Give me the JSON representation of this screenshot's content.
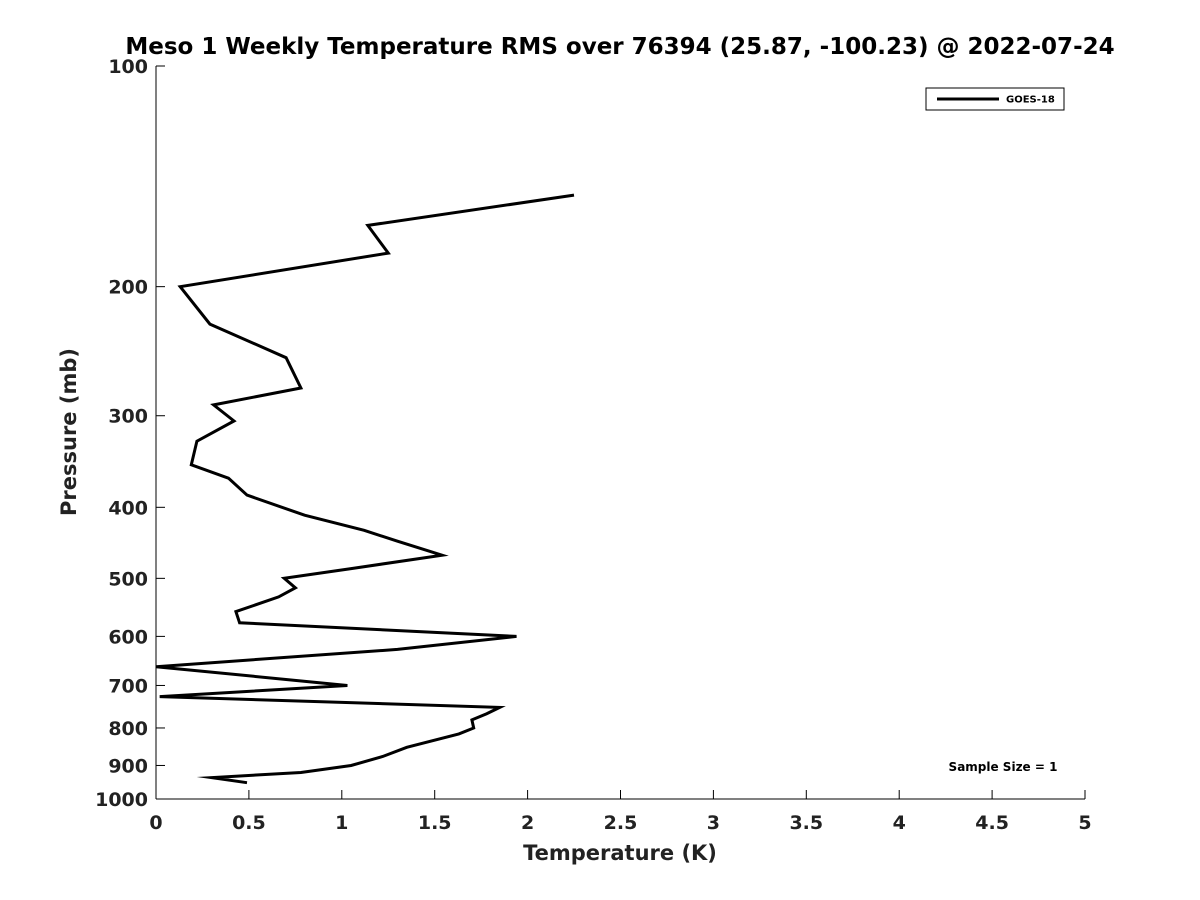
{
  "chart_data": {
    "type": "line",
    "title": "Meso 1 Weekly Temperature RMS over 76394 (25.87, -100.23) @ 2022-07-24",
    "xlabel": "Temperature (K)",
    "ylabel": "Pressure (mb)",
    "xlim": [
      0,
      5
    ],
    "ylim": [
      100,
      1000
    ],
    "y_scale": "log",
    "y_reversed": true,
    "x_ticks": [
      "0",
      "0.5",
      "1",
      "1.5",
      "2",
      "2.5",
      "3",
      "3.5",
      "4",
      "4.5",
      "5"
    ],
    "y_ticks": [
      "100",
      "200",
      "300",
      "400",
      "500",
      "600",
      "700",
      "800",
      "900",
      "1000"
    ],
    "grid": false,
    "legend_position": "top-right",
    "annotation": "Sample Size = 1",
    "series": [
      {
        "name": "GOES-18",
        "color": "#000000",
        "points": [
          {
            "x": 2.25,
            "y": 150
          },
          {
            "x": 1.14,
            "y": 165
          },
          {
            "x": 1.25,
            "y": 180
          },
          {
            "x": 0.13,
            "y": 200
          },
          {
            "x": 0.29,
            "y": 225
          },
          {
            "x": 0.7,
            "y": 250
          },
          {
            "x": 0.78,
            "y": 275
          },
          {
            "x": 0.31,
            "y": 290
          },
          {
            "x": 0.42,
            "y": 305
          },
          {
            "x": 0.22,
            "y": 325
          },
          {
            "x": 0.19,
            "y": 350
          },
          {
            "x": 0.39,
            "y": 365
          },
          {
            "x": 0.49,
            "y": 385
          },
          {
            "x": 0.8,
            "y": 410
          },
          {
            "x": 1.12,
            "y": 430
          },
          {
            "x": 1.3,
            "y": 445
          },
          {
            "x": 1.54,
            "y": 465
          },
          {
            "x": 1.05,
            "y": 485
          },
          {
            "x": 0.69,
            "y": 500
          },
          {
            "x": 0.75,
            "y": 515
          },
          {
            "x": 0.66,
            "y": 530
          },
          {
            "x": 0.43,
            "y": 555
          },
          {
            "x": 0.45,
            "y": 575
          },
          {
            "x": 1.94,
            "y": 600
          },
          {
            "x": 1.3,
            "y": 625
          },
          {
            "x": 0.0,
            "y": 660
          },
          {
            "x": 1.03,
            "y": 700
          },
          {
            "x": 0.02,
            "y": 725
          },
          {
            "x": 1.85,
            "y": 750
          },
          {
            "x": 1.78,
            "y": 765
          },
          {
            "x": 1.7,
            "y": 780
          },
          {
            "x": 1.71,
            "y": 800
          },
          {
            "x": 1.63,
            "y": 815
          },
          {
            "x": 1.35,
            "y": 850
          },
          {
            "x": 1.22,
            "y": 875
          },
          {
            "x": 1.05,
            "y": 900
          },
          {
            "x": 0.78,
            "y": 920
          },
          {
            "x": 0.3,
            "y": 935
          },
          {
            "x": 0.49,
            "y": 950
          }
        ]
      }
    ]
  }
}
